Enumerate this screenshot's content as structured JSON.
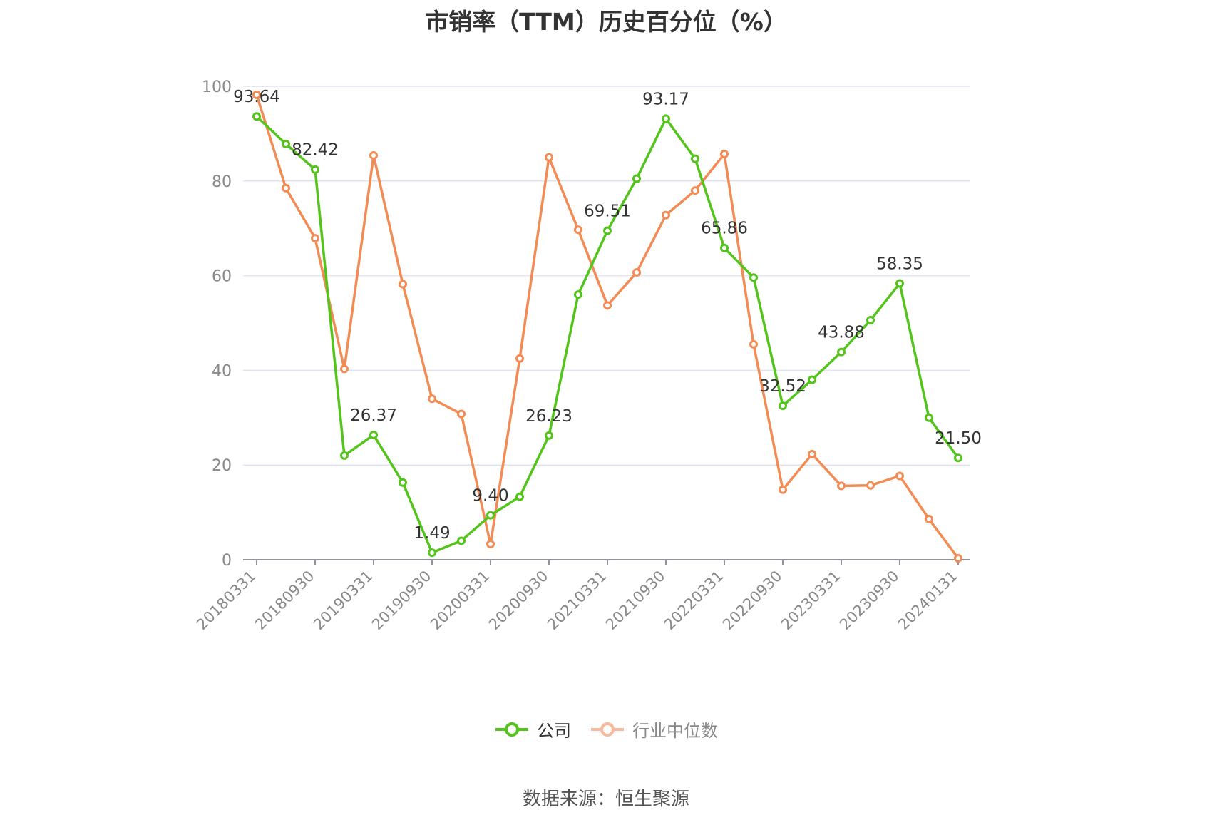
{
  "chart_data": {
    "type": "line",
    "title": "市销率（TTM）历史百分位（%）",
    "ylim": [
      0,
      100
    ],
    "yticks": [
      0,
      20,
      40,
      60,
      80,
      100
    ],
    "grid": true,
    "legend_position": "bottom",
    "x": [
      "20180331",
      "20180630",
      "20180930",
      "20181231",
      "20190331",
      "20190630",
      "20190930",
      "20191231",
      "20200331",
      "20200630",
      "20200930",
      "20201231",
      "20210331",
      "20210630",
      "20210930",
      "20211231",
      "20220331",
      "20220630",
      "20220930",
      "20221231",
      "20230331",
      "20230630",
      "20230930",
      "20231231",
      "20240131"
    ],
    "xtick_labels": [
      "20180331",
      "20180930",
      "20190331",
      "20190930",
      "20200331",
      "20200930",
      "20210331",
      "20210930",
      "20220331",
      "20220930",
      "20230331",
      "20230930",
      "20240131"
    ],
    "series": [
      {
        "name": "公司",
        "color": "#52c41a",
        "values": [
          93.64,
          87.8,
          82.42,
          22.0,
          26.37,
          16.3,
          1.49,
          4.0,
          9.4,
          13.3,
          26.23,
          56.0,
          69.51,
          80.5,
          93.17,
          84.7,
          65.86,
          59.6,
          32.52,
          38.0,
          43.88,
          50.6,
          58.35,
          30.0,
          21.5
        ],
        "labels": [
          "93.64",
          null,
          "82.42",
          null,
          "26.37",
          null,
          "1.49",
          null,
          "9.40",
          null,
          "26.23",
          null,
          "69.51",
          null,
          "93.17",
          null,
          "65.86",
          null,
          "32.52",
          null,
          "43.88",
          null,
          "58.35",
          null,
          "21.50"
        ]
      },
      {
        "name": "行业中位数",
        "color": "#f28b54",
        "values": [
          98.2,
          78.5,
          67.9,
          40.3,
          85.4,
          58.2,
          34.0,
          30.8,
          3.3,
          42.5,
          85.0,
          69.7,
          53.7,
          60.7,
          72.8,
          78.0,
          85.7,
          45.5,
          14.8,
          22.3,
          15.6,
          15.7,
          17.7,
          8.6,
          0.3
        ]
      }
    ]
  },
  "legend": {
    "company_label": "公司",
    "industry_label": "行业中位数"
  },
  "source": "数据来源：恒生聚源"
}
